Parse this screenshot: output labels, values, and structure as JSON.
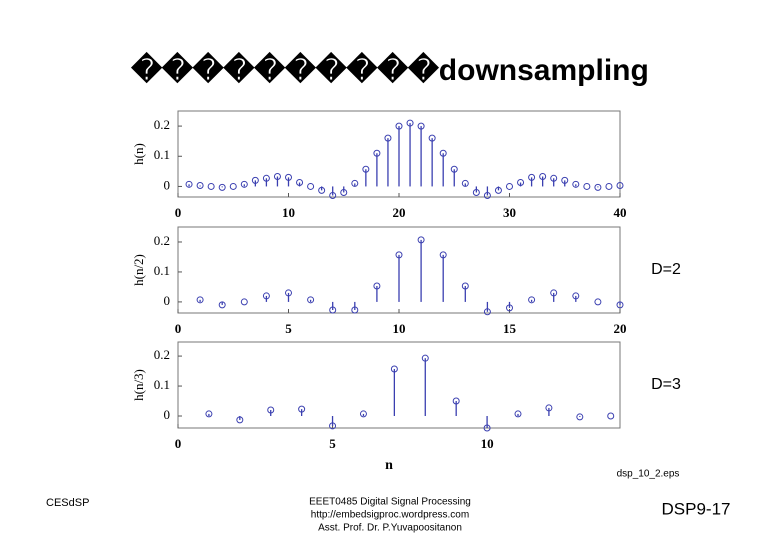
{
  "title": "����������downsampling",
  "source_note": "dsp_10_2.eps",
  "footer": {
    "left": "CESdSP",
    "center": [
      "EEET0485 Digital Signal Processing",
      "http://embedsigproc.wordpress.com",
      "Asst. Prof. Dr. P.Yuvapoositanon"
    ],
    "right": "DSP9-17"
  },
  "chart_data": [
    {
      "type": "stem",
      "ylabel": "h(n)",
      "color": "#3a3fb0",
      "x": [
        1,
        2,
        3,
        4,
        5,
        6,
        7,
        8,
        9,
        10,
        11,
        12,
        13,
        14,
        15,
        16,
        17,
        18,
        19,
        20,
        21,
        22,
        23,
        24,
        25,
        26,
        27,
        28,
        29,
        30,
        31,
        32,
        33,
        34,
        35,
        36,
        37,
        38,
        39,
        40
      ],
      "values": [
        0.007,
        0.003,
        0,
        -0.003,
        0,
        0.007,
        0.02,
        0.027,
        0.033,
        0.03,
        0.013,
        0,
        -0.013,
        -0.03,
        -0.02,
        0.01,
        0.057,
        0.11,
        0.16,
        0.2,
        0.21,
        0.2,
        0.16,
        0.11,
        0.057,
        0.01,
        -0.02,
        -0.03,
        -0.013,
        0,
        0.013,
        0.03,
        0.033,
        0.027,
        0.02,
        0.007,
        0,
        -0.003,
        0,
        0.003
      ],
      "xlim": [
        0,
        40
      ],
      "ylim": [
        -0.035,
        0.25
      ],
      "xticks": [
        0,
        10,
        20,
        30,
        40
      ],
      "yticks": [
        0,
        0.1,
        0.2
      ]
    },
    {
      "type": "stem",
      "ylabel": "h(n/2)",
      "annotation": "D=2",
      "color": "#3a3fb0",
      "x": [
        1,
        2,
        3,
        4,
        5,
        6,
        7,
        8,
        9,
        10,
        11,
        12,
        13,
        14,
        15,
        16,
        17,
        18,
        19,
        20
      ],
      "values": [
        0.007,
        -0.01,
        0,
        0.02,
        0.03,
        0.007,
        -0.027,
        -0.027,
        0.053,
        0.157,
        0.207,
        0.157,
        0.053,
        -0.033,
        -0.02,
        0.007,
        0.03,
        0.02,
        0,
        -0.01
      ],
      "xlim": [
        0,
        20
      ],
      "ylim": [
        -0.037,
        0.25
      ],
      "xticks": [
        0,
        5,
        10,
        15,
        20
      ],
      "yticks": [
        0,
        0.1,
        0.2
      ]
    },
    {
      "type": "stem",
      "ylabel": "h(n/3)",
      "xlabel": "n",
      "annotation": "D=3",
      "color": "#3a3fb0",
      "x": [
        1,
        2,
        3,
        4,
        5,
        6,
        7,
        8,
        9,
        10,
        11,
        12,
        13,
        14
      ],
      "values": [
        0.007,
        -0.013,
        0.02,
        0.023,
        -0.033,
        0.007,
        0.157,
        0.193,
        0.05,
        -0.04,
        0.007,
        0.027,
        -0.003,
        0
      ],
      "xlim": [
        0,
        14.3
      ],
      "ylim": [
        -0.04,
        0.247
      ],
      "xticks": [
        0,
        5,
        10
      ],
      "yticks": [
        0,
        0.1,
        0.2
      ]
    }
  ]
}
